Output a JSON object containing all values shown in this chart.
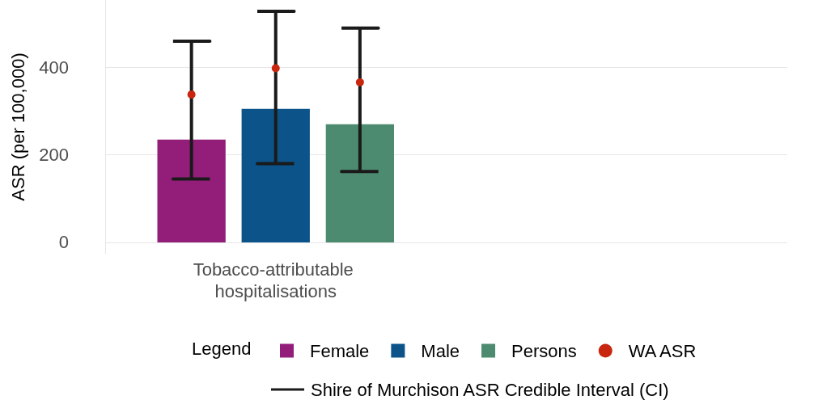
{
  "chart_data": {
    "type": "bar",
    "ylabel": "ASR (per 100,000)",
    "legend_title": "Legend",
    "categories": [
      "Tobacco-attributable hospitalisations",
      null
    ],
    "series": [
      {
        "name": "Female",
        "color": "#931e7a",
        "values": [
          235,
          null
        ],
        "errors": [
          [
            145,
            460
          ],
          null
        ]
      },
      {
        "name": "Male",
        "color": "#0b5389",
        "values": [
          305,
          null
        ],
        "errors": [
          [
            180,
            528
          ],
          null
        ]
      },
      {
        "name": "Persons",
        "color": "#4d8b70",
        "values": [
          270,
          null
        ],
        "errors": [
          [
            162,
            490
          ],
          null
        ]
      },
      {
        "name": "WA ASR",
        "type": "scatter",
        "color": "#c8260e",
        "marker": "circle",
        "x": [
          "Tobacco-attributable hospitalisations",
          "Tobacco-attributable hospitalisations",
          "Tobacco-attributable hospitalisations"
        ],
        "values": [
          338,
          398,
          366
        ]
      }
    ],
    "annotations": [
      "Shire of Murchison ASR Credible Interval (CI)"
    ],
    "ylim": [
      -26,
      554
    ],
    "yticks": [
      0,
      200,
      400
    ],
    "grid": "y",
    "legend": "bottom"
  }
}
